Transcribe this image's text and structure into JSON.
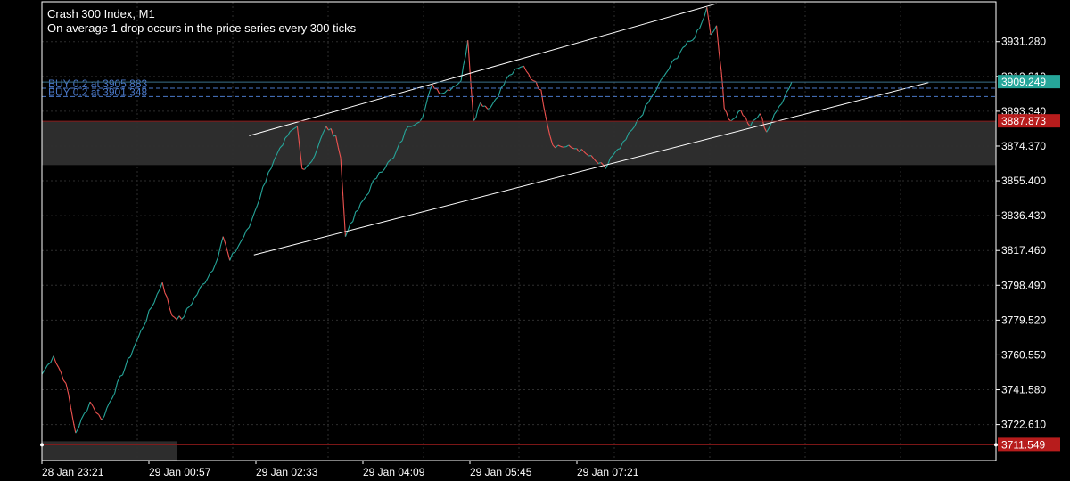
{
  "header": {
    "title": "Crash 300 Index, M1",
    "subtitle": "On average 1 drop occurs in the price series every 300 ticks"
  },
  "colors": {
    "background": "#000000",
    "frame": "#ffffff",
    "grid": "#2e2e2e",
    "up": "#26a69a",
    "down": "#ef5350",
    "zone": "#2f2f2f",
    "trendline": "#ffffff",
    "order_line": "#4a78c8",
    "bid_label": "#26a69a",
    "ask_label": "#b71c1c"
  },
  "chart_data": {
    "type": "candlestick",
    "title": "Crash 300 Index, M1",
    "ylim": [
      3703.0,
      3953.0
    ],
    "y_ticks": [
      "3931.280",
      "3912.310",
      "3893.340",
      "3874.370",
      "3855.400",
      "3836.430",
      "3817.460",
      "3798.490",
      "3779.520",
      "3760.550",
      "3741.580",
      "3722.610"
    ],
    "x_ticks": [
      "28 Jan 23:21",
      "29 Jan 00:57",
      "29 Jan 02:33",
      "29 Jan 04:09",
      "29 Jan 05:45",
      "29 Jan 07:21"
    ],
    "price_path": [
      [
        0,
        3750
      ],
      [
        1.2,
        3760
      ],
      [
        2.5,
        3745
      ],
      [
        3.5,
        3718
      ],
      [
        5,
        3735
      ],
      [
        6.2,
        3725
      ],
      [
        10,
        3770
      ],
      [
        12.5,
        3800
      ],
      [
        13.5,
        3782
      ],
      [
        14.5,
        3780
      ],
      [
        18,
        3810
      ],
      [
        18.8,
        3825
      ],
      [
        19.5,
        3812
      ],
      [
        21.5,
        3830
      ],
      [
        23.5,
        3860
      ],
      [
        25,
        3875
      ],
      [
        25.5,
        3880
      ],
      [
        26.5,
        3885
      ],
      [
        27,
        3862
      ],
      [
        28,
        3866
      ],
      [
        29.5,
        3885
      ],
      [
        30.5,
        3880
      ],
      [
        31,
        3868
      ],
      [
        31.5,
        3825
      ],
      [
        32,
        3832
      ],
      [
        35,
        3860
      ],
      [
        36.5,
        3868
      ],
      [
        38,
        3885
      ],
      [
        39.5,
        3890
      ],
      [
        40.5,
        3908
      ],
      [
        41.5,
        3903
      ],
      [
        43.5,
        3910
      ],
      [
        44.2,
        3932
      ],
      [
        44.8,
        3888
      ],
      [
        45.5,
        3898
      ],
      [
        46.5,
        3895
      ],
      [
        48.5,
        3913
      ],
      [
        50,
        3918
      ],
      [
        51,
        3910
      ],
      [
        51.8,
        3905
      ],
      [
        52.5,
        3885
      ],
      [
        53,
        3875
      ],
      [
        55.5,
        3873
      ],
      [
        56.5,
        3870
      ],
      [
        57.5,
        3866
      ],
      [
        58.5,
        3862
      ],
      [
        59,
        3868
      ],
      [
        60,
        3873
      ],
      [
        61.5,
        3885
      ],
      [
        63.5,
        3903
      ],
      [
        64.5,
        3912
      ],
      [
        66.5,
        3928
      ],
      [
        67.5,
        3932
      ],
      [
        68.5,
        3942
      ],
      [
        69,
        3950
      ],
      [
        69.4,
        3935
      ],
      [
        70,
        3940
      ],
      [
        70.5,
        3915
      ],
      [
        70.8,
        3895
      ],
      [
        71.5,
        3888
      ],
      [
        72.5,
        3894
      ],
      [
        73.5,
        3885
      ],
      [
        74.5,
        3892
      ],
      [
        75.2,
        3882
      ],
      [
        76.5,
        3896
      ],
      [
        77.8,
        3909.249
      ]
    ],
    "x_domain": [
      0,
      99
    ],
    "channel": {
      "upper": [
        [
          21.5,
          3880
        ],
        [
          70,
          3952
        ]
      ],
      "lower": [
        [
          22,
          3815
        ],
        [
          92,
          3909
        ]
      ]
    },
    "zones": [
      {
        "from": 3887.873,
        "to": 3864
      },
      {
        "from": 3713.5,
        "to": 3703,
        "x_end": 14
      }
    ],
    "orders": [
      {
        "label": "BUY 0.2 at 3905.883",
        "price": 3905.883
      },
      {
        "label": "BUY 0.2 at 3901.348",
        "price": 3901.348
      }
    ],
    "bid": {
      "label": "3909.249",
      "price": 3909.249
    },
    "ask": {
      "label": "3887.873",
      "price": 3887.873
    },
    "low_line": {
      "label": "3711.549",
      "price": 3711.549
    },
    "grid": true
  }
}
